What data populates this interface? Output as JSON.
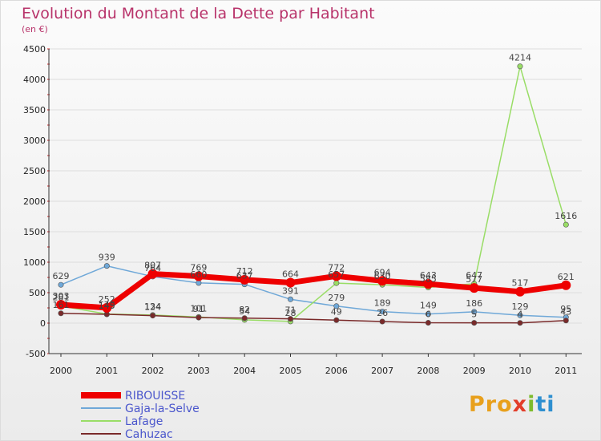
{
  "chart_data": {
    "type": "line",
    "title": "Evolution du Montant de la Dette par Habitant",
    "ylabel": "(en €)",
    "xlabel": "",
    "categories": [
      "2000",
      "2001",
      "2002",
      "2003",
      "2004",
      "2005",
      "2006",
      "2007",
      "2008",
      "2009",
      "2010",
      "2011"
    ],
    "ylim": [
      -500,
      4500
    ],
    "yticks": [
      -500,
      0,
      500,
      1000,
      1500,
      2000,
      2500,
      3000,
      3500,
      4000,
      4500
    ],
    "series": [
      {
        "name": "RIBOUISSE",
        "color": "#ee0000",
        "values": [
          303,
          252,
          807,
          769,
          712,
          664,
          772,
          694,
          643,
          577,
          517,
          621
        ],
        "labels": [
          "303",
          "252",
          "807",
          "769",
          "712",
          "664",
          "772",
          "694",
          "643",
          "577",
          "517",
          "621"
        ]
      },
      {
        "name": "Gaja-la-Selve",
        "color": "#6fa8d8",
        "values": [
          629,
          939,
          764,
          660,
          637,
          391,
          279,
          189,
          149,
          186,
          129,
          95
        ],
        "labels": [
          "629",
          "939",
          "764",
          "660",
          "637",
          "391",
          "279",
          "189",
          "149",
          "186",
          "129",
          "95"
        ]
      },
      {
        "name": "Lafage",
        "color": "#99dd66",
        "values": [
          281,
          149,
          134,
          101,
          54,
          28,
          657,
          630,
          585,
          647,
          4214,
          1616
        ],
        "labels": [
          "281",
          "149",
          "134",
          "101",
          "54",
          "28",
          "657",
          "630",
          "585",
          "647",
          "4214",
          "1616"
        ]
      },
      {
        "name": "Cahuzac",
        "color": "#7a2a2a",
        "values": [
          161,
          145,
          124,
          91,
          82,
          71,
          49,
          26,
          6,
          5,
          4,
          43
        ],
        "labels": [
          "161",
          "145",
          "124",
          "91",
          "82",
          "71",
          "49",
          "26",
          "6",
          "5",
          "4",
          "43"
        ]
      }
    ],
    "legend_position": "bottom-left"
  },
  "brand": {
    "p": "Pro",
    "x": "x",
    "i": "i",
    "t": "ti"
  }
}
